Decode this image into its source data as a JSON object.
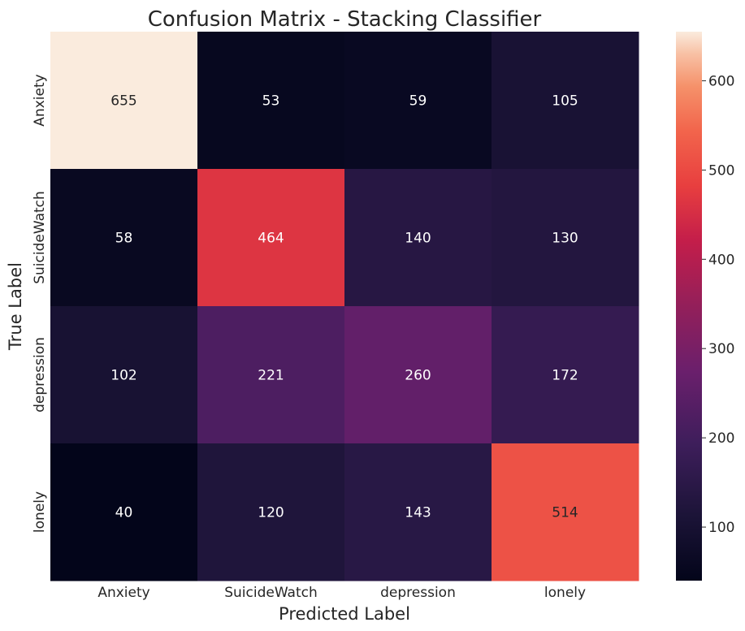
{
  "chart_data": {
    "type": "heatmap",
    "title": "Confusion Matrix - Stacking Classifier",
    "xlabel": "Predicted Label",
    "ylabel": "True Label",
    "x_categories": [
      "Anxiety",
      "SuicideWatch",
      "depression",
      "lonely"
    ],
    "y_categories": [
      "Anxiety",
      "SuicideWatch",
      "depression",
      "lonely"
    ],
    "values": [
      [
        655,
        53,
        59,
        105
      ],
      [
        58,
        464,
        140,
        130
      ],
      [
        102,
        221,
        260,
        172
      ],
      [
        40,
        120,
        143,
        514
      ]
    ],
    "colorscale": "rocket",
    "vmin": 40,
    "vmax": 655,
    "colorbar_ticks": [
      100,
      200,
      300,
      400,
      500,
      600
    ],
    "grid": false
  }
}
